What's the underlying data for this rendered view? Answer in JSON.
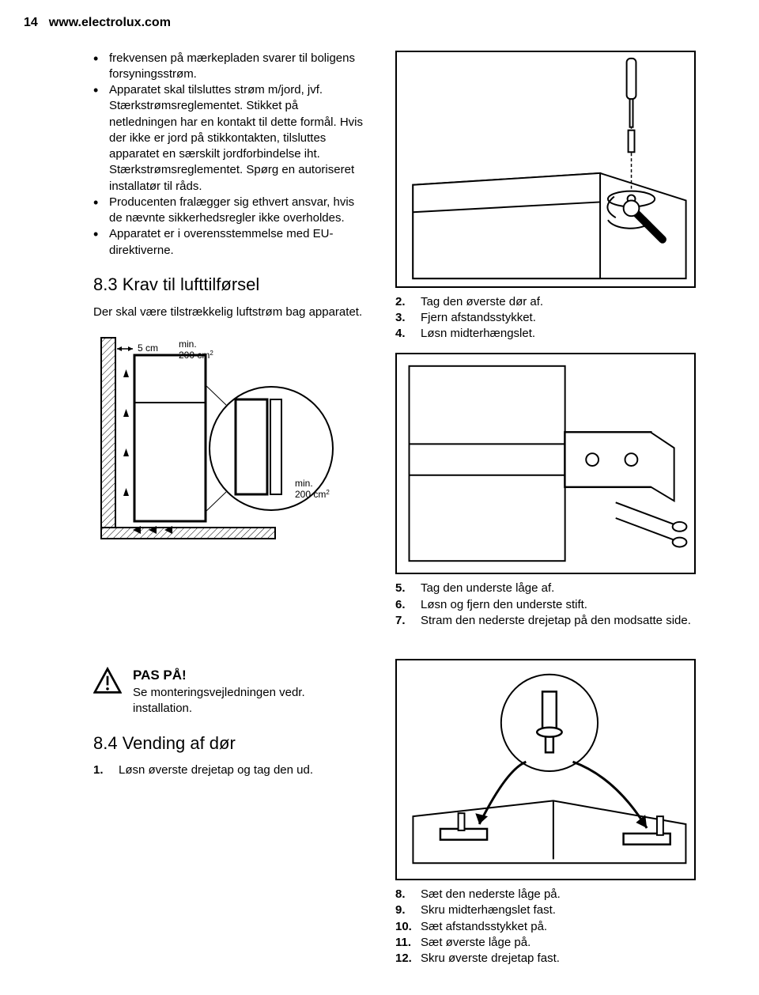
{
  "header": {
    "page_number": "14",
    "url": "www.electrolux.com"
  },
  "left": {
    "bullets": [
      "frekvensen på mærkepladen svarer til boligens forsyningsstrøm.",
      "Apparatet skal tilsluttes strøm m/jord, jvf. Stærkstrømsreglementet. Stikket på netledningen har en kontakt til dette formål. Hvis der ikke er jord på stikkontakten, tilsluttes apparatet en særskilt jordforbindelse iht. Stærkstrømsreglementet. Spørg en autoriseret installatør til råds.",
      "Producenten fralægger sig ethvert ansvar, hvis de nævnte sikkerhedsregler ikke overholdes.",
      "Apparatet er i overensstemmelse med EU-direktiverne."
    ],
    "section_8_3": {
      "title": "8.3 Krav til lufttilførsel",
      "para": "Der skal være tilstrækkelig luftstrøm bag apparatet."
    },
    "airflow_diagram": {
      "gap_label": "5 cm",
      "top_label_1": "min.",
      "top_label_2": "200 cm²",
      "bottom_label_1": "min.",
      "bottom_label_2": "200 cm²"
    },
    "caution": {
      "title": "PAS PÅ!",
      "text": "Se monteringsvejledningen vedr. installation."
    },
    "section_8_4": {
      "title": "8.4 Vending af dør"
    },
    "step_1": {
      "num": "1.",
      "text": "Løsn øverste drejetap og tag den ud."
    }
  },
  "right": {
    "steps_2_4": [
      {
        "num": "2.",
        "text": "Tag den øverste dør af."
      },
      {
        "num": "3.",
        "text": "Fjern afstandsstykket."
      },
      {
        "num": "4.",
        "text": "Løsn midterhængslet."
      }
    ],
    "steps_5_7": [
      {
        "num": "5.",
        "text": "Tag den underste låge af."
      },
      {
        "num": "6.",
        "text": "Løsn og fjern den underste stift."
      },
      {
        "num": "7.",
        "text": "Stram den nederste drejetap på den modsatte side."
      }
    ],
    "steps_8_12": [
      {
        "num": "8.",
        "text": "Sæt den nederste låge på."
      },
      {
        "num": "9.",
        "text": "Skru midterhængslet fast."
      },
      {
        "num": "10.",
        "text": "Sæt afstandsstykket på."
      },
      {
        "num": "11.",
        "text": "Sæt øverste låge på."
      },
      {
        "num": "12.",
        "text": "Skru øverste drejetap fast."
      }
    ]
  }
}
